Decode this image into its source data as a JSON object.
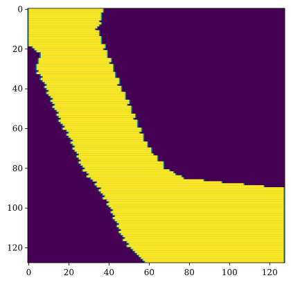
{
  "chart_data": {
    "type": "heatmap",
    "title": "",
    "xlabel": "",
    "ylabel": "",
    "grid": false,
    "legend": "none",
    "xlim": [
      -0.5,
      127.5
    ],
    "ylim": [
      127.5,
      -0.5
    ],
    "x_ticks": [
      0,
      20,
      40,
      60,
      80,
      100,
      120
    ],
    "y_ticks": [
      0,
      20,
      40,
      60,
      80,
      100,
      120
    ],
    "x_tick_labels": [
      "0",
      "20",
      "40",
      "60",
      "80",
      "100",
      "120"
    ],
    "y_tick_labels": [
      "0",
      "20",
      "40",
      "60",
      "80",
      "100",
      "120"
    ],
    "colors": {
      "background": "#440154",
      "mask": "#fde725",
      "edge": "#21918c"
    },
    "values": "binary mask 128x128 (0 = background, 1 = band)",
    "mask_rows": [
      {
        "y": 0,
        "x_start": 0,
        "x_end": 37
      },
      {
        "y": 10,
        "x_start": 0,
        "x_end": 34
      },
      {
        "y": 18,
        "x_start": 0,
        "x_end": 37
      },
      {
        "y": 22,
        "x_start": 6,
        "x_end": 39
      },
      {
        "y": 30,
        "x_start": 4,
        "x_end": 42
      },
      {
        "y": 40,
        "x_start": 9,
        "x_end": 46
      },
      {
        "y": 50,
        "x_start": 13,
        "x_end": 51
      },
      {
        "y": 60,
        "x_start": 18,
        "x_end": 55
      },
      {
        "y": 70,
        "x_start": 23,
        "x_end": 60
      },
      {
        "y": 75,
        "x_start": 25,
        "x_end": 64
      },
      {
        "y": 80,
        "x_start": 27,
        "x_end": 68
      },
      {
        "y": 85,
        "x_start": 31,
        "x_end": 77
      },
      {
        "y": 90,
        "x_start": 35,
        "x_end": 127
      },
      {
        "y": 95,
        "x_start": 38,
        "x_end": 127
      },
      {
        "y": 100,
        "x_start": 41,
        "x_end": 127
      },
      {
        "y": 110,
        "x_start": 45,
        "x_end": 127
      },
      {
        "y": 118,
        "x_start": 49,
        "x_end": 127
      },
      {
        "y": 122,
        "x_start": 53,
        "x_end": 127
      },
      {
        "y": 125,
        "x_start": 56,
        "x_end": 127
      },
      {
        "y": 127,
        "x_start": 58,
        "x_end": 127
      }
    ]
  }
}
